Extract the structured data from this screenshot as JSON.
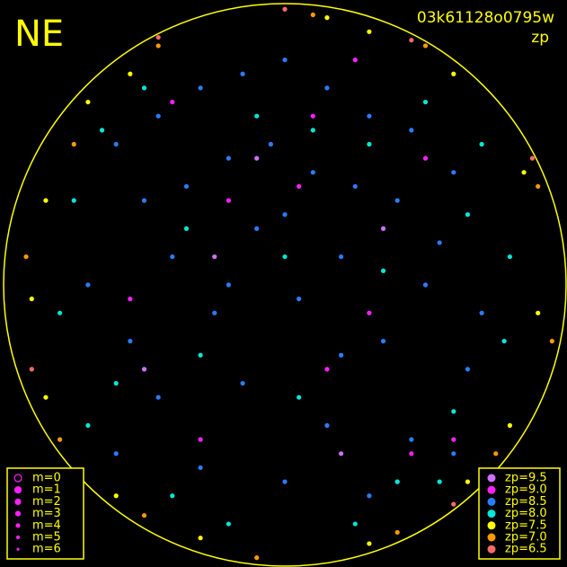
{
  "chart_data": {
    "type": "scatter",
    "title": "NE",
    "subtitle": "03k61128o0795w",
    "color_label": "zp",
    "xlim": [
      -1,
      1
    ],
    "ylim": [
      -1,
      1
    ],
    "size_legend": [
      "m=0",
      "m=1",
      "m=2",
      "m=3",
      "m=4",
      "m=5",
      "m=6"
    ],
    "series": [
      {
        "name": "zp=9.5",
        "color": "#d070ff",
        "x": [
          -0.1,
          0.35,
          -0.5,
          0.2,
          0.4,
          -0.25
        ],
        "y": [
          0.45,
          0.2,
          -0.3,
          -0.6,
          -0.7,
          0.1
        ]
      },
      {
        "name": "zp=9.0",
        "color": "#ff20ff",
        "x": [
          -0.4,
          -0.2,
          0.1,
          0.3,
          0.5,
          -0.55,
          0.15,
          0.45,
          -0.3,
          0.25,
          0.05,
          0.6
        ],
        "y": [
          0.65,
          0.3,
          0.6,
          -0.1,
          0.45,
          -0.05,
          -0.3,
          -0.6,
          -0.55,
          0.8,
          0.35,
          -0.55
        ]
      },
      {
        "name": "zp=8.5",
        "color": "#2a7cff",
        "x": [
          -0.6,
          -0.45,
          -0.3,
          -0.15,
          0,
          0.15,
          0.3,
          0.45,
          0.6,
          -0.5,
          -0.35,
          -0.2,
          -0.05,
          0.1,
          0.25,
          0.4,
          0.55,
          -0.7,
          -0.4,
          -0.1,
          0.2,
          0.5,
          0.7,
          -0.55,
          -0.25,
          0.05,
          0.35,
          0.65,
          -0.45,
          -0.15,
          0.15,
          0.45,
          -0.3,
          0,
          0.3,
          -0.6,
          0.6,
          -0.2,
          0.2,
          0.0
        ],
        "y": [
          0.5,
          0.6,
          0.7,
          0.75,
          0.8,
          0.7,
          0.6,
          0.55,
          0.4,
          0.3,
          0.35,
          0.45,
          0.5,
          0.4,
          0.35,
          0.3,
          0.15,
          0.0,
          0.1,
          0.2,
          0.1,
          0.0,
          -0.1,
          -0.2,
          -0.1,
          -0.05,
          -0.2,
          -0.3,
          -0.4,
          -0.35,
          -0.5,
          -0.55,
          -0.65,
          -0.7,
          -0.75,
          -0.6,
          -0.6,
          0.0,
          -0.25,
          0.25
        ]
      },
      {
        "name": "zp=8.0",
        "color": "#00e8d8",
        "x": [
          -0.75,
          -0.65,
          -0.5,
          -0.35,
          -0.1,
          0.1,
          0.3,
          0.5,
          0.65,
          0.8,
          -0.8,
          -0.6,
          -0.3,
          0.0,
          0.35,
          0.6,
          0.78,
          -0.7,
          -0.4,
          0.05,
          0.4,
          0.7,
          -0.2,
          0.25,
          0.55
        ],
        "y": [
          0.3,
          0.55,
          0.7,
          0.2,
          0.6,
          0.55,
          0.5,
          0.65,
          0.25,
          0.1,
          -0.1,
          -0.35,
          -0.25,
          0.1,
          0.05,
          -0.45,
          -0.2,
          -0.5,
          -0.75,
          -0.4,
          -0.7,
          0.5,
          -0.85,
          -0.85,
          -0.7
        ]
      },
      {
        "name": "zp=7.5",
        "color": "#ffff00",
        "x": [
          -0.85,
          -0.9,
          -0.7,
          -0.55,
          0.3,
          0.6,
          0.85,
          0.9,
          0.8,
          -0.85,
          -0.6,
          -0.3,
          0.3,
          0.65,
          0.15
        ],
        "y": [
          0.3,
          -0.05,
          0.65,
          0.75,
          0.9,
          0.75,
          0.4,
          -0.1,
          -0.5,
          -0.4,
          -0.75,
          -0.9,
          -0.92,
          -0.7,
          0.95
        ]
      },
      {
        "name": "zp=7.0",
        "color": "#ff9a00",
        "x": [
          -0.92,
          -0.75,
          -0.45,
          0.1,
          0.5,
          0.9,
          0.95,
          0.75,
          0.4,
          -0.1,
          -0.5,
          -0.8
        ],
        "y": [
          0.1,
          0.5,
          0.85,
          0.96,
          0.85,
          0.35,
          -0.2,
          -0.6,
          -0.88,
          -0.97,
          -0.82,
          -0.55
        ]
      },
      {
        "name": "zp=6.5",
        "color": "#ff6a6a",
        "x": [
          -0.45,
          0.0,
          0.45,
          -0.9,
          0.88,
          0.6
        ],
        "y": [
          0.88,
          0.98,
          0.87,
          -0.3,
          0.45,
          -0.78
        ]
      }
    ]
  }
}
